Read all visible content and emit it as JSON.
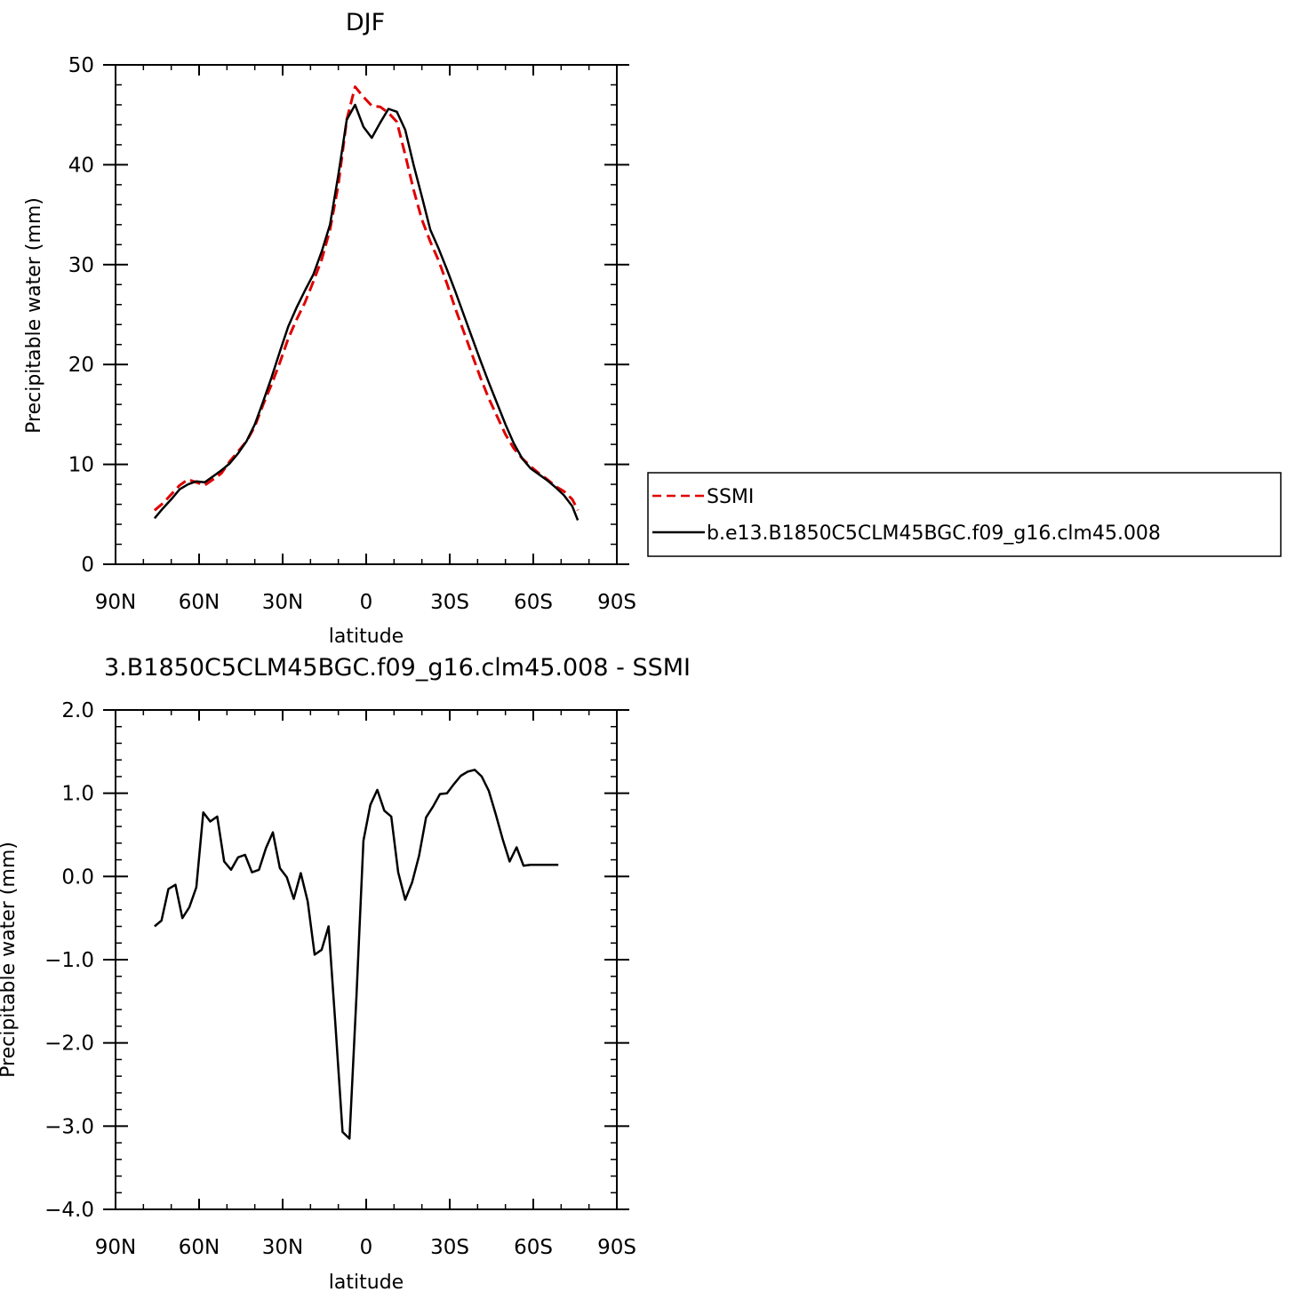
{
  "chart_data": [
    {
      "type": "line",
      "title": "DJF",
      "xlabel": "latitude",
      "ylabel": "Precipitable water (mm)",
      "xlim": [
        90,
        -90
      ],
      "ylim": [
        0,
        50
      ],
      "xticks": [
        {
          "value": 90,
          "label": "90N"
        },
        {
          "value": 60,
          "label": "60N"
        },
        {
          "value": 30,
          "label": "30N"
        },
        {
          "value": 0,
          "label": "0"
        },
        {
          "value": -30,
          "label": "30S"
        },
        {
          "value": -60,
          "label": "60S"
        },
        {
          "value": -90,
          "label": "90S"
        }
      ],
      "yticks": [
        {
          "value": 0,
          "label": "0"
        },
        {
          "value": 10,
          "label": "10"
        },
        {
          "value": 20,
          "label": "20"
        },
        {
          "value": 30,
          "label": "30"
        },
        {
          "value": 40,
          "label": "40"
        },
        {
          "value": 50,
          "label": "50"
        }
      ],
      "legend": {
        "position": "right",
        "entries": [
          {
            "label": "SSMI",
            "color": "#e00000",
            "dash": true
          },
          {
            "label": "b.e13.B1850C5CLM45BGC.f09_g16.clm45.008",
            "color": "#000000",
            "dash": false
          }
        ]
      },
      "series": [
        {
          "name": "SSMI",
          "color": "#e00000",
          "dash": true,
          "x": [
            76,
            73,
            70,
            67,
            64,
            61,
            58,
            55,
            52,
            49,
            46,
            43,
            40,
            37,
            34,
            31,
            28,
            25,
            22,
            19,
            16,
            13,
            10,
            7,
            4,
            1,
            -2,
            -5,
            -8,
            -11,
            -14,
            -17,
            -20,
            -23,
            -26,
            -29,
            -32,
            -35,
            -38,
            -41,
            -44,
            -47,
            -50,
            -53,
            -56,
            -59,
            -62,
            -65,
            -68,
            -71,
            -74,
            -76
          ],
          "y": [
            5.4,
            6.1,
            7.0,
            7.9,
            8.5,
            8.2,
            7.9,
            8.5,
            9.1,
            10.3,
            11.3,
            12.3,
            13.8,
            16.0,
            18.0,
            20.2,
            22.6,
            24.5,
            26.2,
            28.3,
            30.5,
            33.5,
            38.0,
            44.5,
            47.8,
            46.8,
            45.9,
            45.8,
            45.2,
            44.3,
            41.0,
            37.5,
            34.5,
            32.3,
            30.4,
            28.1,
            25.6,
            23.3,
            21.0,
            18.7,
            16.6,
            14.8,
            13.0,
            11.6,
            10.6,
            9.8,
            9.1,
            8.5,
            7.8,
            7.3,
            6.5,
            5.4
          ]
        },
        {
          "name": "b.e13.B1850C5CLM45BGC.f09_g16.clm45.008",
          "color": "#000000",
          "dash": false,
          "x": [
            76,
            73,
            70,
            67,
            64,
            61,
            58,
            55,
            52,
            49,
            46,
            43,
            40,
            37,
            34,
            31,
            28,
            25,
            22,
            19,
            16,
            13,
            10,
            7,
            4,
            1,
            -2,
            -5,
            -8,
            -11,
            -14,
            -17,
            -20,
            -23,
            -26,
            -29,
            -32,
            -35,
            -38,
            -41,
            -44,
            -47,
            -50,
            -53,
            -56,
            -59,
            -62,
            -65,
            -68,
            -71,
            -74,
            -76
          ],
          "y": [
            4.6,
            5.6,
            6.5,
            7.5,
            8.0,
            8.3,
            8.2,
            8.8,
            9.4,
            10.1,
            11.1,
            12.3,
            14.0,
            16.3,
            18.7,
            21.3,
            23.8,
            25.7,
            27.4,
            29.0,
            31.3,
            34.0,
            39.0,
            44.5,
            46.0,
            43.8,
            42.7,
            44.2,
            45.6,
            45.3,
            43.5,
            40.0,
            36.8,
            33.5,
            31.6,
            29.5,
            27.3,
            25.0,
            22.7,
            20.4,
            18.2,
            16.1,
            14.0,
            12.1,
            10.6,
            9.6,
            9.0,
            8.4,
            7.7,
            6.9,
            5.8,
            4.4
          ]
        }
      ]
    },
    {
      "type": "line",
      "title": "3.B1850C5CLM45BGC.f09_g16.clm45.008 - SSMI",
      "xlabel": "latitude",
      "ylabel": "Precipitable water (mm)",
      "xlim": [
        90,
        -90
      ],
      "ylim": [
        -4,
        2
      ],
      "xticks": [
        {
          "value": 90,
          "label": "90N"
        },
        {
          "value": 60,
          "label": "60N"
        },
        {
          "value": 30,
          "label": "30N"
        },
        {
          "value": 0,
          "label": "0"
        },
        {
          "value": -30,
          "label": "30S"
        },
        {
          "value": -60,
          "label": "60S"
        },
        {
          "value": -90,
          "label": "90S"
        }
      ],
      "yticks": [
        {
          "value": 2,
          "label": "2.0"
        },
        {
          "value": 1,
          "label": "1.0"
        },
        {
          "value": 0,
          "label": "0.0"
        },
        {
          "value": -1,
          "label": "-1.0"
        },
        {
          "value": -2,
          "label": "-2.0"
        },
        {
          "value": -3,
          "label": "-3.0"
        },
        {
          "value": -4,
          "label": "-4.0"
        }
      ],
      "series": [
        {
          "color": "#000000",
          "dash": false,
          "x": [
            76,
            73.5,
            71,
            68.5,
            66,
            63.5,
            61,
            58.5,
            56,
            53.5,
            51,
            48.5,
            46,
            43.5,
            41,
            38.5,
            36,
            33.5,
            31,
            28.5,
            26,
            23.5,
            21,
            18.5,
            16,
            13.5,
            11,
            8.5,
            6,
            3.5,
            1,
            -1.5,
            -4,
            -6.5,
            -9,
            -11.5,
            -14,
            -16.5,
            -19,
            -21.5,
            -24,
            -26.5,
            -29,
            -31.5,
            -34,
            -36.5,
            -39,
            -41.5,
            -44,
            -46.5,
            -49,
            -51.5,
            -54,
            -56.5,
            -59,
            -61.5,
            -64,
            -66.5,
            -69
          ],
          "y": [
            -0.6,
            -0.53,
            -0.15,
            -0.1,
            -0.5,
            -0.37,
            -0.13,
            0.77,
            0.66,
            0.72,
            0.18,
            0.08,
            0.23,
            0.26,
            0.05,
            0.08,
            0.34,
            0.53,
            0.1,
            -0.01,
            -0.27,
            0.04,
            -0.3,
            -0.94,
            -0.88,
            -0.6,
            -1.8,
            -3.07,
            -3.15,
            -1.45,
            0.43,
            0.86,
            1.04,
            0.79,
            0.72,
            0.05,
            -0.28,
            -0.07,
            0.25,
            0.71,
            0.84,
            0.99,
            1.0,
            1.11,
            1.21,
            1.26,
            1.28,
            1.2,
            1.03,
            0.75,
            0.45,
            0.18,
            0.35,
            0.13,
            0.14,
            0.14,
            0.14,
            0.14,
            0.14
          ]
        }
      ]
    }
  ]
}
